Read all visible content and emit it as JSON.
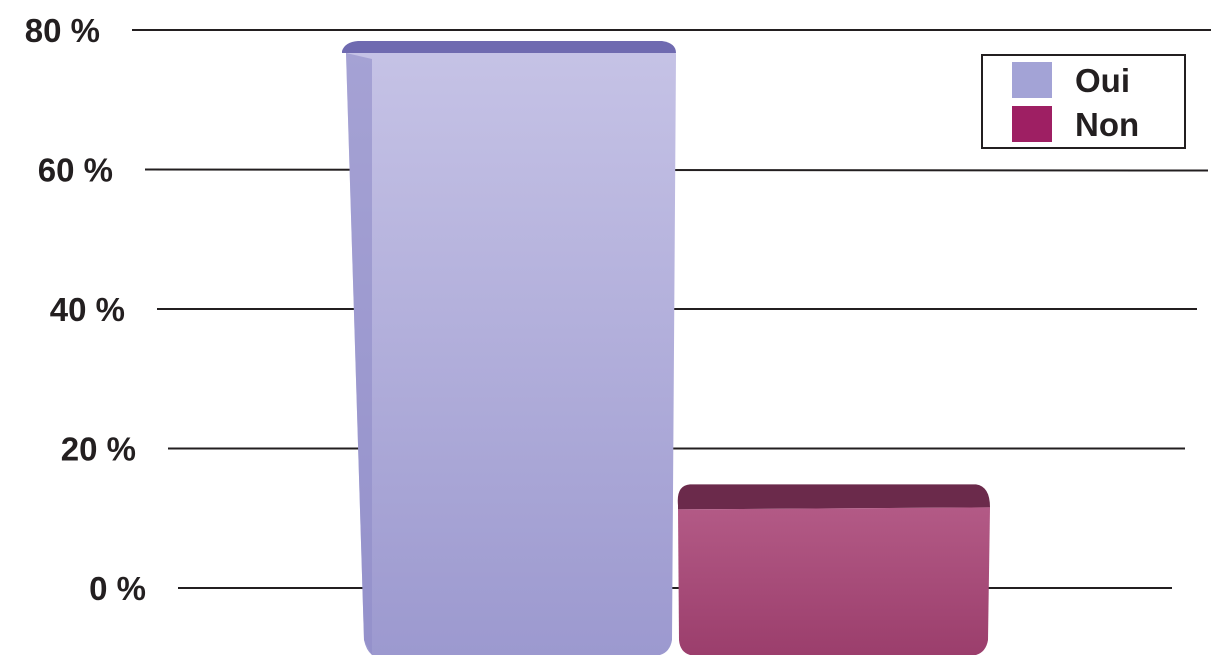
{
  "chart_data": {
    "type": "bar",
    "categories": [
      "Oui",
      "Non"
    ],
    "series": [
      {
        "name": "Oui",
        "values": [
          78,
          null
        ],
        "color": "#a3a3d6"
      },
      {
        "name": "Non",
        "values": [
          null,
          15
        ],
        "color": "#9e1f63"
      }
    ],
    "values": [
      78,
      15
    ],
    "y_ticks": [
      "0 %",
      "20 %",
      "40 %",
      "60 %",
      "80 %"
    ],
    "ylim": [
      0,
      80
    ],
    "grid": true,
    "legend": {
      "placement": "top-right",
      "entries": [
        {
          "label": "Oui",
          "color": "#a3a3d6"
        },
        {
          "label": "Non",
          "color": "#9e1f63"
        }
      ]
    },
    "title": "",
    "xlabel": "",
    "ylabel": ""
  }
}
